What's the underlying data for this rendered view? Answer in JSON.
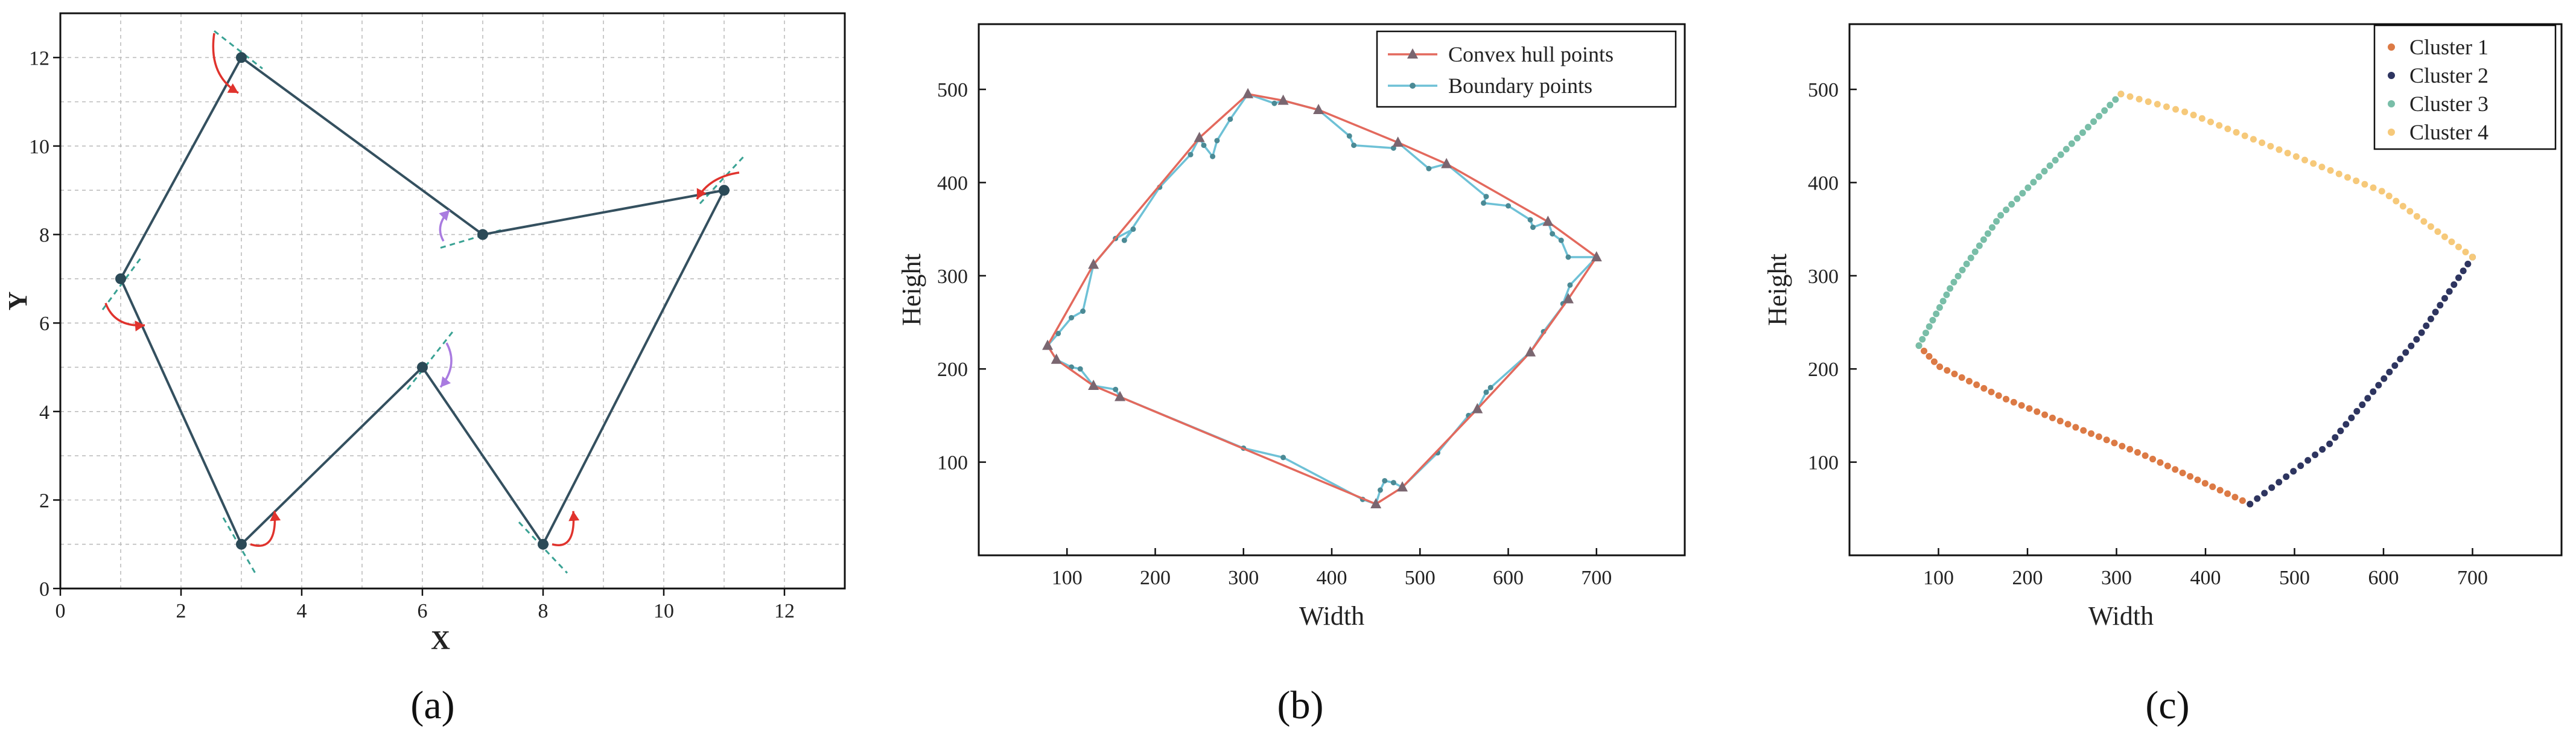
{
  "figure": {
    "captions": [
      "(a)",
      "(b)",
      "(c)"
    ]
  },
  "chart_data": [
    {
      "panel": "a",
      "type": "line",
      "xlabel": "X",
      "ylabel": "Y",
      "xlim": [
        0,
        13
      ],
      "ylim": [
        0,
        13
      ],
      "xticks": [
        "0",
        "2",
        "4",
        "6",
        "8",
        "10",
        "12"
      ],
      "yticks": [
        "0",
        "2",
        "4",
        "6",
        "8",
        "10",
        "12"
      ],
      "grid": true,
      "polygon": [
        [
          3,
          12
        ],
        [
          7,
          8
        ],
        [
          11,
          9
        ],
        [
          8,
          1
        ],
        [
          6,
          5
        ],
        [
          3,
          1
        ],
        [
          1,
          7
        ]
      ],
      "colors": {
        "line": "#34505f",
        "point": "#2b4a57",
        "tangent": "#3aa294",
        "arrow_convex": "#e0332d",
        "arrow_concave": "#a97be0"
      }
    },
    {
      "panel": "b",
      "type": "line",
      "xlabel": "Width",
      "ylabel": "Height",
      "xlim": [
        0,
        800
      ],
      "ylim": [
        0,
        570
      ],
      "xticks": [
        "100",
        "200",
        "300",
        "400",
        "500",
        "600",
        "700"
      ],
      "yticks": [
        "100",
        "200",
        "300",
        "400",
        "500"
      ],
      "legend": [
        "Convex hull points",
        "Boundary points"
      ],
      "legend_position": "top-right",
      "colors": {
        "hull": "#e3695d",
        "boundary": "#6ec1d6",
        "marker": "#7a6670"
      },
      "series": [
        {
          "name": "Convex hull points",
          "points": [
            [
              305,
              495
            ],
            [
              345,
              488
            ],
            [
              385,
              478
            ],
            [
              475,
              443
            ],
            [
              530,
              420
            ],
            [
              645,
              358
            ],
            [
              700,
              320
            ],
            [
              668,
              275
            ],
            [
              625,
              218
            ],
            [
              565,
              157
            ],
            [
              480,
              73
            ],
            [
              450,
              55
            ],
            [
              160,
              170
            ],
            [
              130,
              182
            ],
            [
              88,
              210
            ],
            [
              78,
              225
            ],
            [
              130,
              312
            ],
            [
              250,
              448
            ]
          ]
        },
        {
          "name": "Boundary points",
          "points": [
            [
              305,
              495
            ],
            [
              335,
              485
            ],
            [
              345,
              488
            ],
            [
              385,
              478
            ],
            [
              420,
              450
            ],
            [
              425,
              440
            ],
            [
              470,
              437
            ],
            [
              475,
              443
            ],
            [
              510,
              415
            ],
            [
              530,
              420
            ],
            [
              575,
              385
            ],
            [
              572,
              378
            ],
            [
              600,
              375
            ],
            [
              625,
              360
            ],
            [
              628,
              352
            ],
            [
              645,
              358
            ],
            [
              650,
              345
            ],
            [
              660,
              338
            ],
            [
              668,
              320
            ],
            [
              700,
              320
            ],
            [
              670,
              290
            ],
            [
              662,
              270
            ],
            [
              668,
              275
            ],
            [
              640,
              240
            ],
            [
              625,
              218
            ],
            [
              580,
              180
            ],
            [
              575,
              175
            ],
            [
              565,
              157
            ],
            [
              555,
              150
            ],
            [
              520,
              110
            ],
            [
              480,
              73
            ],
            [
              470,
              78
            ],
            [
              460,
              80
            ],
            [
              455,
              70
            ],
            [
              450,
              55
            ],
            [
              435,
              60
            ],
            [
              345,
              105
            ],
            [
              300,
              115
            ],
            [
              160,
              170
            ],
            [
              155,
              178
            ],
            [
              130,
              182
            ],
            [
              115,
              200
            ],
            [
              105,
              202
            ],
            [
              88,
              210
            ],
            [
              78,
              225
            ],
            [
              90,
              238
            ],
            [
              105,
              255
            ],
            [
              118,
              262
            ],
            [
              130,
              312
            ],
            [
              155,
              340
            ],
            [
              175,
              350
            ],
            [
              165,
              338
            ],
            [
              205,
              395
            ],
            [
              240,
              430
            ],
            [
              250,
              448
            ],
            [
              255,
              440
            ],
            [
              265,
              428
            ],
            [
              270,
              445
            ],
            [
              285,
              468
            ],
            [
              305,
              495
            ]
          ]
        }
      ]
    },
    {
      "panel": "c",
      "type": "scatter",
      "xlabel": "Width",
      "ylabel": "Height",
      "xlim": [
        0,
        800
      ],
      "ylim": [
        0,
        570
      ],
      "xticks": [
        "100",
        "200",
        "300",
        "400",
        "500",
        "600",
        "700"
      ],
      "yticks": [
        "100",
        "200",
        "300",
        "400",
        "500"
      ],
      "legend": [
        "Cluster 1",
        "Cluster 2",
        "Cluster 3",
        "Cluster 4"
      ],
      "legend_position": "top-right",
      "colors": {
        "Cluster 1": "#dc7a45",
        "Cluster 2": "#2e3560",
        "Cluster 3": "#79bea8",
        "Cluster 4": "#f6c97a"
      },
      "series": [
        {
          "name": "Cluster 1",
          "from": [
            78,
            225
          ],
          "via": [
            [
              100,
              203
            ],
            [
              175,
              168
            ],
            [
              330,
              108
            ]
          ],
          "to": [
            450,
            55
          ],
          "n": 46
        },
        {
          "name": "Cluster 2",
          "from": [
            450,
            55
          ],
          "via": [
            [
              540,
              120
            ],
            [
              640,
              235
            ]
          ],
          "to": [
            700,
            320
          ],
          "n": 40
        },
        {
          "name": "Cluster 3",
          "from": [
            78,
            225
          ],
          "via": [
            [
              115,
              290
            ],
            [
              170,
              365
            ]
          ],
          "to": [
            305,
            495
          ],
          "n": 44
        },
        {
          "name": "Cluster 4",
          "from": [
            305,
            495
          ],
          "via": [
            [
              380,
              475
            ],
            [
              600,
              390
            ]
          ],
          "to": [
            700,
            320
          ],
          "n": 44
        }
      ]
    }
  ]
}
